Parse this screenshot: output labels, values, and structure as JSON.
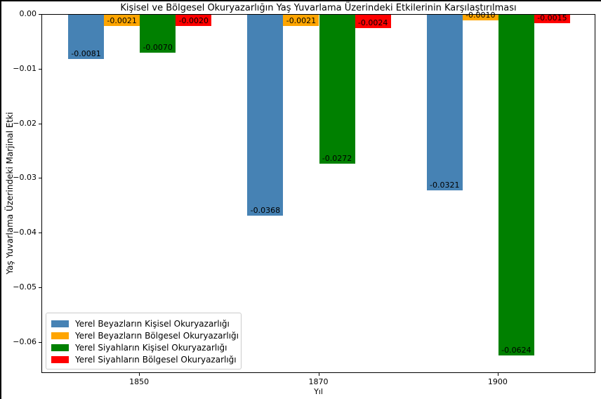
{
  "chart_data": {
    "type": "bar",
    "title": "Kişisel ve Bölgesel Okuryazarlığın Yaş Yuvarlama Üzerindeki Etkilerinin Karşılaştırılması",
    "xlabel": "Yıl",
    "ylabel": "Yaş Yuvarlama Üzerindeki Marjinal Etki",
    "categories": [
      "1850",
      "1870",
      "1900"
    ],
    "series": [
      {
        "name": "Yerel Beyazların Kişisel Okuryazarlığı",
        "color": "#4682b4",
        "values": [
          -0.0081,
          -0.0368,
          -0.0321
        ],
        "bar_labels": [
          "-0.0081",
          "-0.0368",
          "-0.0321"
        ]
      },
      {
        "name": "Yerel Beyazların Bölgesel Okuryazarlığı",
        "color": "#ffa500",
        "values": [
          -0.0021,
          -0.0021,
          -0.001
        ],
        "bar_labels": [
          "-0.0021",
          "-0.0021",
          "-0.0010"
        ]
      },
      {
        "name": "Yerel Siyahların Kişisel Okuryazarlığı",
        "color": "#008000",
        "values": [
          -0.007,
          -0.0272,
          -0.0624
        ],
        "bar_labels": [
          "-0.0070",
          "-0.0272",
          "-0.0624"
        ]
      },
      {
        "name": "Yerel Siyahların Bölgesel Okuryazarlığı",
        "color": "#ff0000",
        "values": [
          -0.002,
          -0.0024,
          -0.0015
        ],
        "bar_labels": [
          "-0.0020",
          "-0.0024",
          "-0.0015"
        ]
      }
    ],
    "y_ticks": [
      {
        "label": "0.00",
        "value": 0
      },
      {
        "label": "−0.01",
        "value": -0.01
      },
      {
        "label": "−0.02",
        "value": -0.02
      },
      {
        "label": "−0.03",
        "value": -0.03
      },
      {
        "label": "−0.04",
        "value": -0.04
      },
      {
        "label": "−0.05",
        "value": -0.05
      },
      {
        "label": "−0.06",
        "value": -0.06
      }
    ],
    "ylim": [
      -0.0657,
      0
    ],
    "grid": false,
    "legend_position": "lower left"
  }
}
